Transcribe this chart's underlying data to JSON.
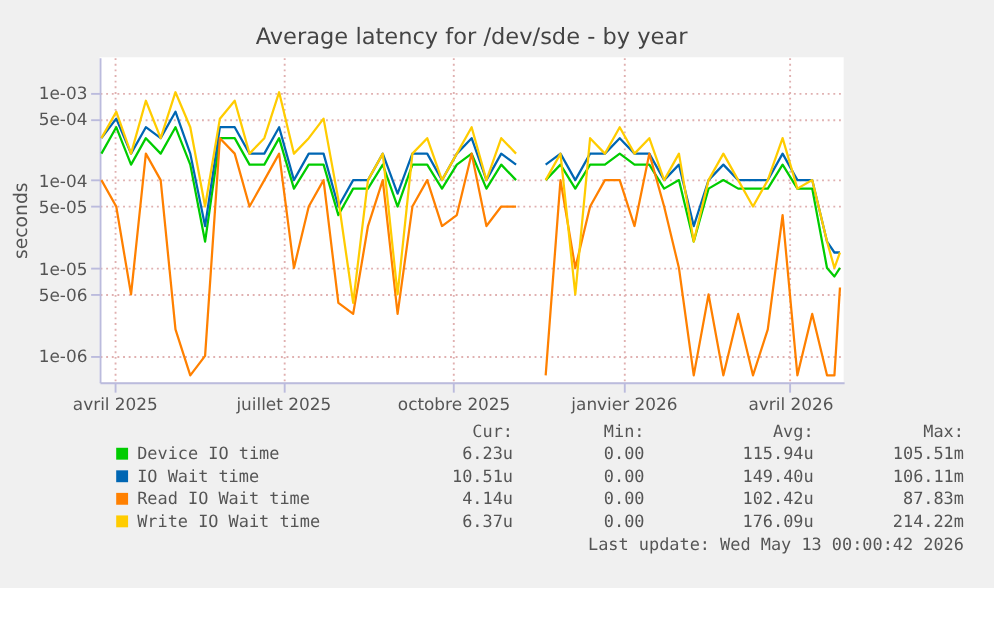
{
  "chart_data": {
    "type": "line",
    "title": "Average latency for /dev/sde - by year",
    "ylabel": "seconds",
    "log": true,
    "grid": true,
    "legend": "bottom",
    "marker": "none",
    "line_style": "solid",
    "ylim": [
      5e-07,
      0.0025
    ],
    "yticks": [
      {
        "value": 0.001,
        "label": "1e-03"
      },
      {
        "value": 0.0005,
        "label": "5e-04"
      },
      {
        "value": 0.0001,
        "label": "1e-04"
      },
      {
        "value": 5e-05,
        "label": "5e-05"
      },
      {
        "value": 1e-05,
        "label": "1e-05"
      },
      {
        "value": 5e-06,
        "label": "5e-06"
      },
      {
        "value": 1e-06,
        "label": "1e-06"
      }
    ],
    "xlim": [
      "2025-03-24",
      "2026-04-30"
    ],
    "xticks": [
      {
        "value": "2025-04-01",
        "label": "avril 2025"
      },
      {
        "value": "2025-07-01",
        "label": "juillet 2025"
      },
      {
        "value": "2025-10-01",
        "label": "octobre 2025"
      },
      {
        "value": "2026-01-01",
        "label": "janvier 2026"
      },
      {
        "value": "2026-04-01",
        "label": "avril 2026"
      }
    ],
    "x": [
      "2025-03-25",
      "2025-04-02",
      "2025-04-10",
      "2025-04-18",
      "2025-04-26",
      "2025-05-04",
      "2025-05-12",
      "2025-05-20",
      "2025-05-28",
      "2025-06-05",
      "2025-06-13",
      "2025-06-21",
      "2025-06-29",
      "2025-07-07",
      "2025-07-15",
      "2025-07-23",
      "2025-07-31",
      "2025-08-08",
      "2025-08-16",
      "2025-08-24",
      "2025-09-01",
      "2025-09-09",
      "2025-09-17",
      "2025-09-25",
      "2025-10-03",
      "2025-10-11",
      "2025-10-19",
      "2025-10-27",
      "2025-11-04",
      "2025-11-12",
      "2025-11-20",
      "2025-11-28",
      "2025-12-06",
      "2025-12-14",
      "2025-12-22",
      "2025-12-30",
      "2026-01-07",
      "2026-01-15",
      "2026-01-23",
      "2026-01-31",
      "2026-02-08",
      "2026-02-16",
      "2026-02-24",
      "2026-03-04",
      "2026-03-12",
      "2026-03-20",
      "2026-03-28",
      "2026-04-05",
      "2026-04-13",
      "2026-04-21",
      "2026-04-25",
      "2026-04-28"
    ],
    "series": [
      {
        "name": "Device IO time",
        "color": "#00cc00",
        "values": [
          0.0002,
          0.0004,
          0.00015,
          0.0003,
          0.0002,
          0.0004,
          0.00015,
          2e-05,
          0.0003,
          0.0003,
          0.00015,
          0.00015,
          0.0003,
          8e-05,
          0.00015,
          0.00015,
          4e-05,
          8e-05,
          8e-05,
          0.00015,
          5e-05,
          0.00015,
          0.00015,
          8e-05,
          0.00015,
          0.0002,
          8e-05,
          0.00015,
          0.0001,
          null,
          0.0001,
          0.00015,
          8e-05,
          0.00015,
          0.00015,
          0.0002,
          0.00015,
          0.00015,
          8e-05,
          0.0001,
          2e-05,
          8e-05,
          0.0001,
          8e-05,
          8e-05,
          8e-05,
          0.00015,
          8e-05,
          8e-05,
          1e-05,
          8e-06,
          1e-05
        ]
      },
      {
        "name": "IO Wait time",
        "color": "#0066b3",
        "values": [
          0.0003,
          0.0005,
          0.0002,
          0.0004,
          0.0003,
          0.0006,
          0.0002,
          3e-05,
          0.0004,
          0.0004,
          0.0002,
          0.0002,
          0.0004,
          0.0001,
          0.0002,
          0.0002,
          5e-05,
          0.0001,
          0.0001,
          0.0002,
          7e-05,
          0.0002,
          0.0002,
          0.0001,
          0.0002,
          0.0003,
          0.0001,
          0.0002,
          0.00015,
          null,
          0.00015,
          0.0002,
          0.0001,
          0.0002,
          0.0002,
          0.0003,
          0.0002,
          0.0002,
          0.0001,
          0.00015,
          3e-05,
          0.0001,
          0.00015,
          0.0001,
          0.0001,
          0.0001,
          0.0002,
          0.0001,
          0.0001,
          2e-05,
          1.5e-05,
          1.5e-05
        ]
      },
      {
        "name": "Read IO Wait time",
        "color": "#ff8000",
        "values": [
          0.0001,
          5e-05,
          5e-06,
          0.0002,
          0.0001,
          2e-06,
          6e-07,
          1e-06,
          0.0003,
          0.0002,
          5e-05,
          0.0001,
          0.0002,
          1e-05,
          5e-05,
          0.0001,
          4e-06,
          3e-06,
          3e-05,
          0.0001,
          3e-06,
          5e-05,
          0.0001,
          3e-05,
          4e-05,
          0.0002,
          3e-05,
          5e-05,
          5e-05,
          null,
          6e-07,
          0.0001,
          1e-05,
          5e-05,
          0.0001,
          0.0001,
          3e-05,
          0.0002,
          5e-05,
          1e-05,
          6e-07,
          5e-06,
          6e-07,
          3e-06,
          6e-07,
          2e-06,
          4e-05,
          6e-07,
          3e-06,
          6e-07,
          6e-07,
          6e-06
        ]
      },
      {
        "name": "Write IO Wait time",
        "color": "#ffcc00",
        "values": [
          0.0003,
          0.0006,
          0.0002,
          0.0008,
          0.0003,
          0.001,
          0.0004,
          5e-05,
          0.0005,
          0.0008,
          0.0002,
          0.0003,
          0.001,
          0.0002,
          0.0003,
          0.0005,
          6e-05,
          4e-06,
          0.0001,
          0.0002,
          5e-06,
          0.0002,
          0.0003,
          0.0001,
          0.0002,
          0.0004,
          0.0001,
          0.0003,
          0.0002,
          null,
          0.0001,
          0.0002,
          5e-06,
          0.0003,
          0.0002,
          0.0004,
          0.0002,
          0.0003,
          0.0001,
          0.0002,
          2e-05,
          0.0001,
          0.0002,
          0.0001,
          5e-05,
          0.0001,
          0.0003,
          8e-05,
          0.0001,
          2e-05,
          1e-05,
          1.5e-05
        ]
      }
    ],
    "annotations": [
      "Cur:",
      "Min:",
      "Avg:",
      "Max:",
      "6.23u",
      "0.00",
      "115.94u",
      "105.51m",
      "10.51u",
      "0.00",
      "149.40u",
      "106.11m",
      "4.14u",
      "0.00",
      "102.42u",
      "87.83m",
      "6.37u",
      "0.00",
      "176.09u",
      "214.22m",
      "Last update: Wed May 13 00:00:42 2026"
    ]
  }
}
